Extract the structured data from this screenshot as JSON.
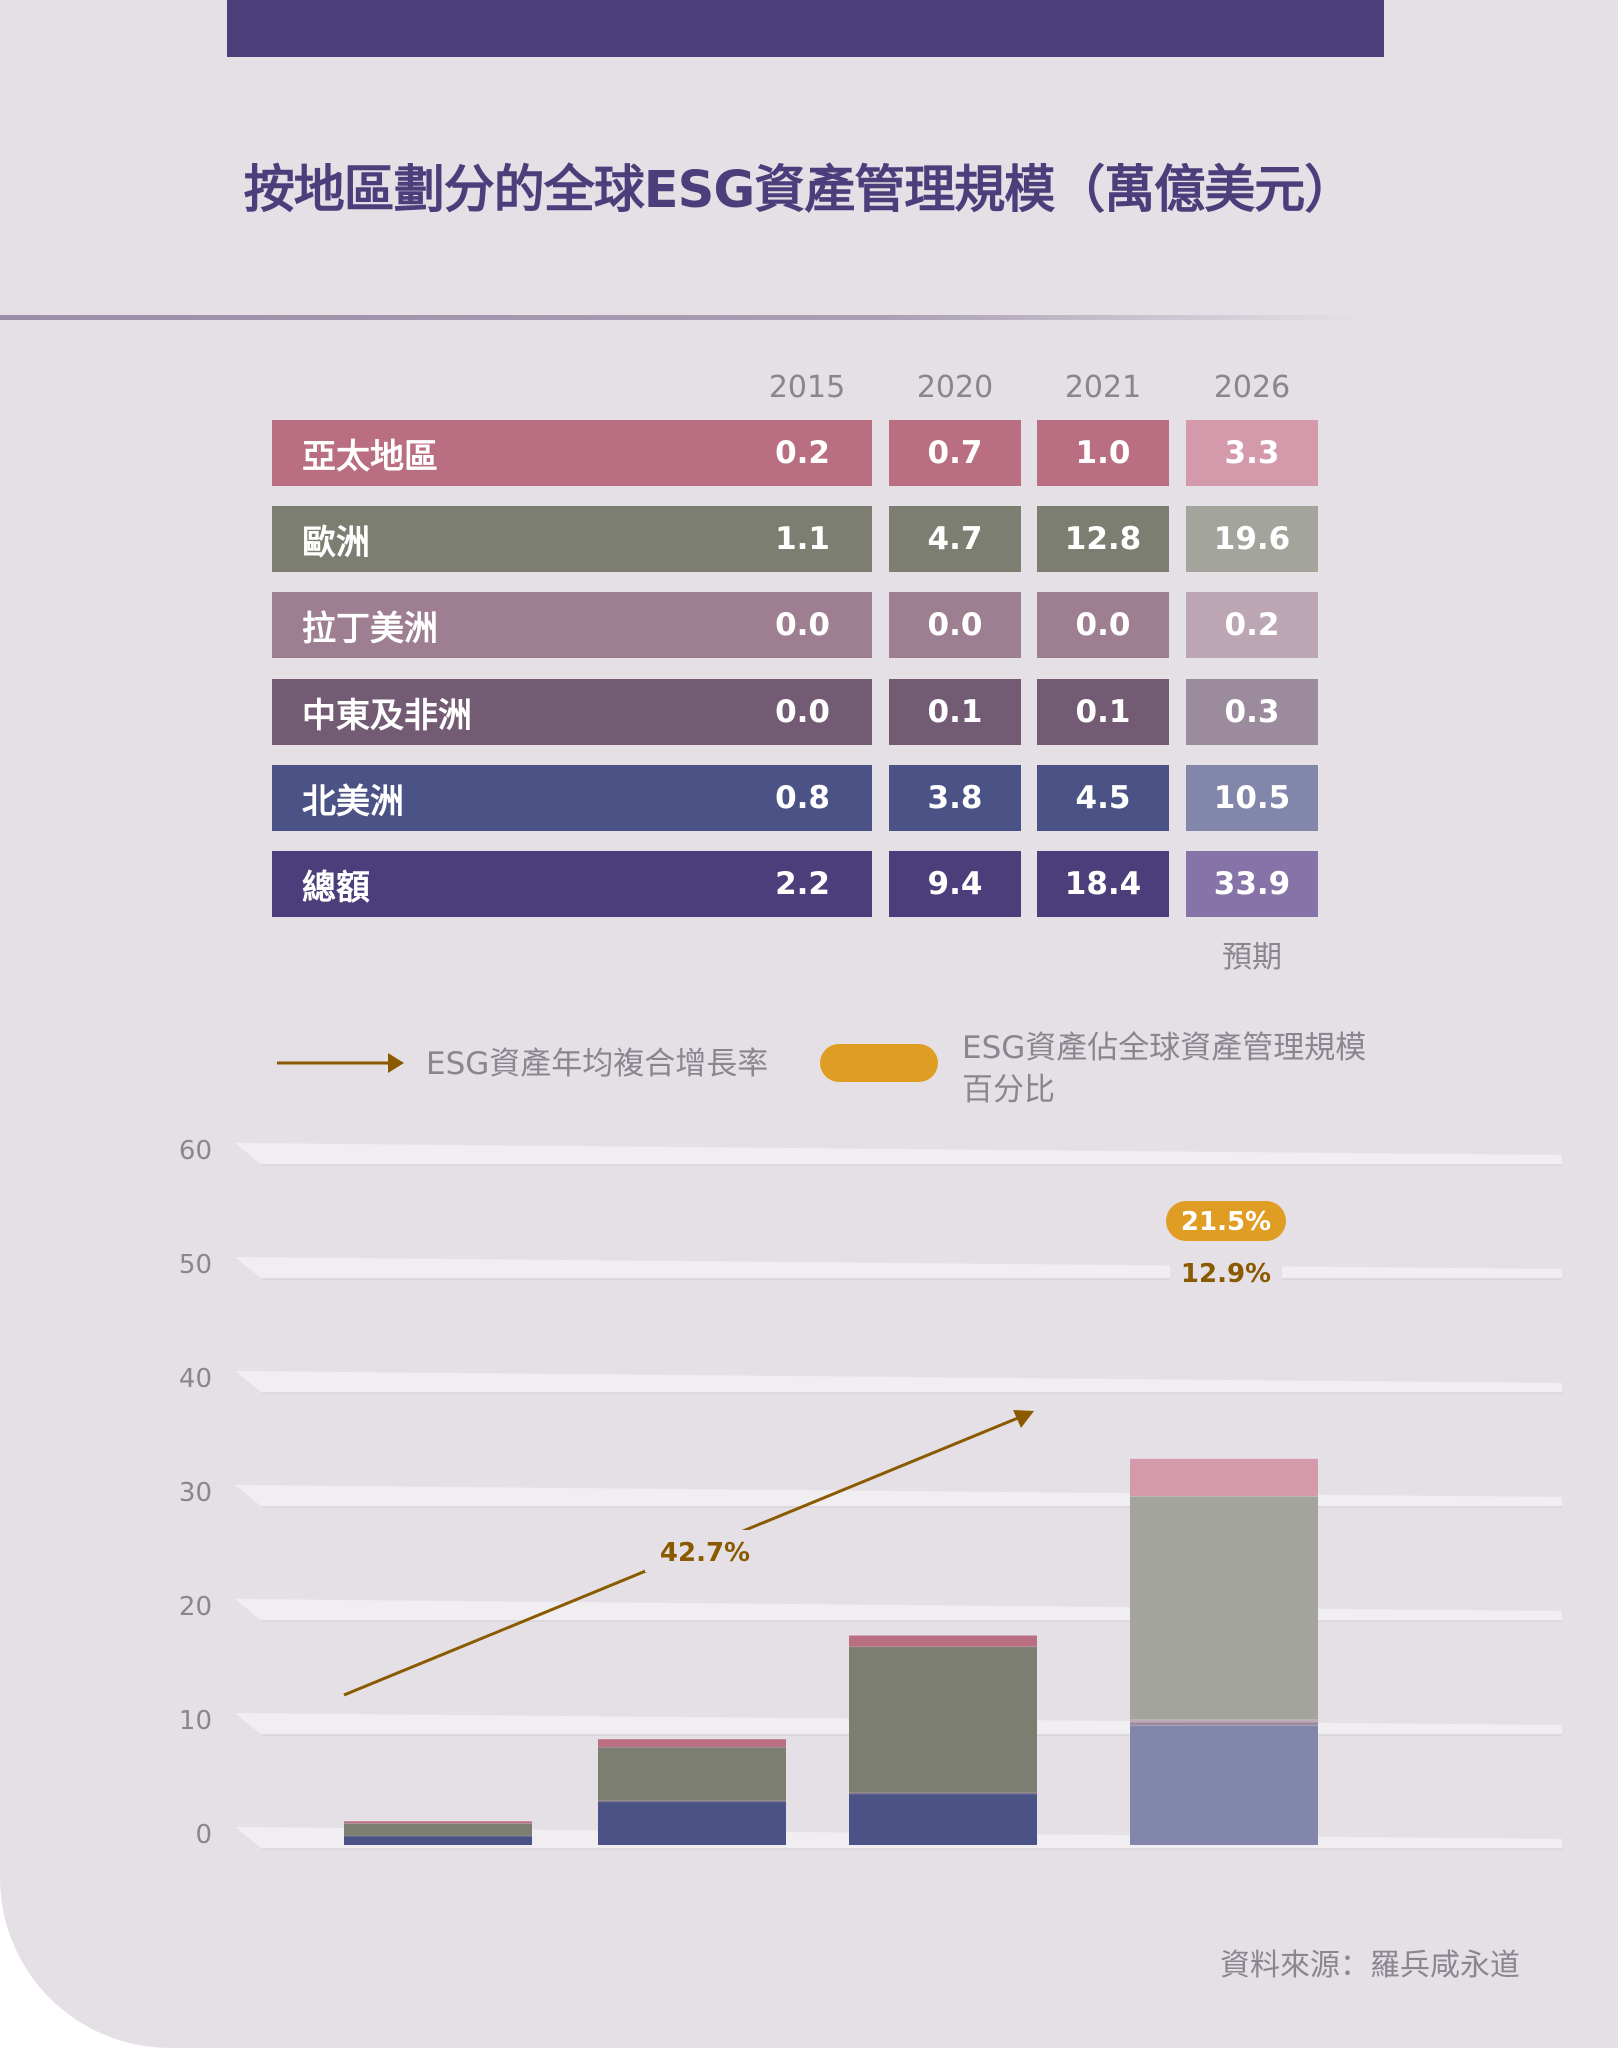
{
  "title": "按地區劃分的全球ESG資產管理規模（萬億美元）",
  "table": {
    "years": [
      "2015",
      "2020",
      "2021",
      "2026"
    ],
    "rows": [
      {
        "region": "亞太地區",
        "values": [
          "0.2",
          "0.7",
          "1.0",
          "3.3"
        ],
        "color": "#b96e82",
        "color_forecast": "#d49aab"
      },
      {
        "region": "歐洲",
        "values": [
          "1.1",
          "4.7",
          "12.8",
          "19.6"
        ],
        "color": "#7b7e70",
        "color_forecast": "#a3a59c"
      },
      {
        "region": "拉丁美洲",
        "values": [
          "0.0",
          "0.0",
          "0.0",
          "0.2"
        ],
        "color": "#9e7f91",
        "color_forecast": "#bca6b3"
      },
      {
        "region": "中東及非洲",
        "values": [
          "0.0",
          "0.1",
          "0.1",
          "0.3"
        ],
        "color": "#735b73",
        "color_forecast": "#9c8b9c"
      },
      {
        "region": "北美洲",
        "values": [
          "0.8",
          "3.8",
          "4.5",
          "10.5"
        ],
        "color": "#4b5285",
        "color_forecast": "#8386ab"
      },
      {
        "region": "總額",
        "values": [
          "2.2",
          "9.4",
          "18.4",
          "33.9"
        ],
        "color": "#4b3e7b",
        "color_forecast": "#8673a8"
      }
    ],
    "forecast_label": "預期"
  },
  "legend": {
    "arrow_label": "ESG資產年均複合增長率",
    "pill_label_line1": "ESG資產佔全球資產管理規模",
    "pill_label_line2": "百分比",
    "arrow_color": "#8a5a00",
    "pill_color": "#e09d23"
  },
  "chart_data": {
    "type": "bar",
    "stacked": true,
    "categories": [
      "2015",
      "2020",
      "2021",
      "2026"
    ],
    "series": [
      {
        "name": "北美洲",
        "values": [
          0.8,
          3.8,
          4.5,
          10.5
        ]
      },
      {
        "name": "中東及非洲",
        "values": [
          0.0,
          0.1,
          0.1,
          0.3
        ]
      },
      {
        "name": "拉丁美洲",
        "values": [
          0.0,
          0.0,
          0.0,
          0.2
        ]
      },
      {
        "name": "歐洲",
        "values": [
          1.1,
          4.7,
          12.8,
          19.6
        ]
      },
      {
        "name": "亞太地區",
        "values": [
          0.2,
          0.7,
          1.0,
          3.3
        ]
      }
    ],
    "yticks": [
      "0",
      "10",
      "20",
      "30",
      "40",
      "50",
      "60"
    ],
    "ylim": [
      0,
      60
    ],
    "annotations": {
      "cagr_arrow": "42.7%",
      "forecast_pill": "21.5%",
      "forecast_cagr": "12.9%"
    }
  },
  "source": "資料來源：羅兵咸永道"
}
